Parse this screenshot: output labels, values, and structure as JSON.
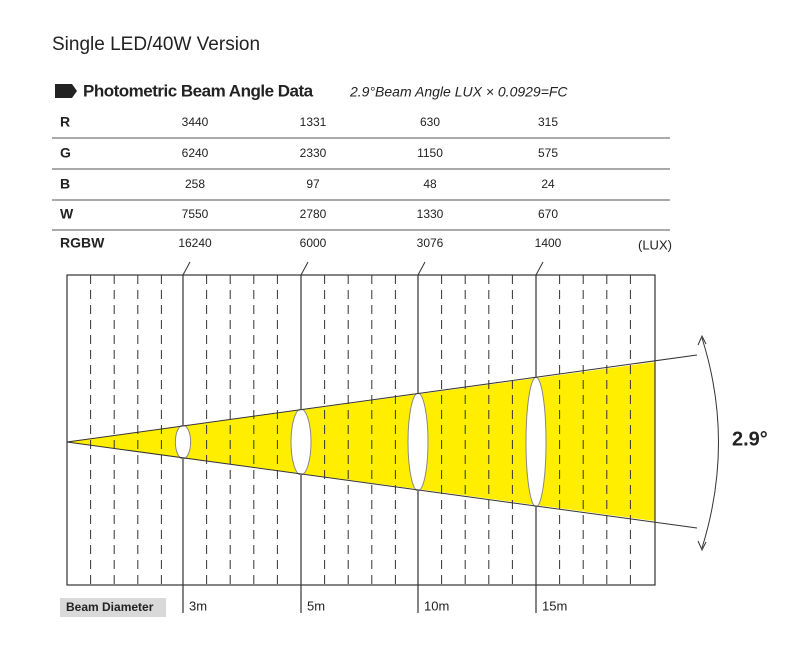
{
  "title": "Single LED/40W Version",
  "section": {
    "heading": "Photometric Beam Angle Data",
    "note": "2.9°Beam Angle  LUX × 0.0929=FC"
  },
  "table": {
    "rows": [
      [
        "R",
        3440,
        1331,
        630,
        315
      ],
      [
        "G",
        6240,
        2330,
        1150,
        575
      ],
      [
        "B",
        258,
        97,
        48,
        24
      ],
      [
        "W",
        7550,
        2780,
        1330,
        670
      ],
      [
        "RGBW",
        16240,
        6000,
        3076,
        1400
      ]
    ],
    "unit": "(LUX)"
  },
  "diagram": {
    "angle_label": "2.9°",
    "axis_label": "Beam Diameter",
    "distances": [
      "3m",
      "5m",
      "10m",
      "15m"
    ]
  }
}
